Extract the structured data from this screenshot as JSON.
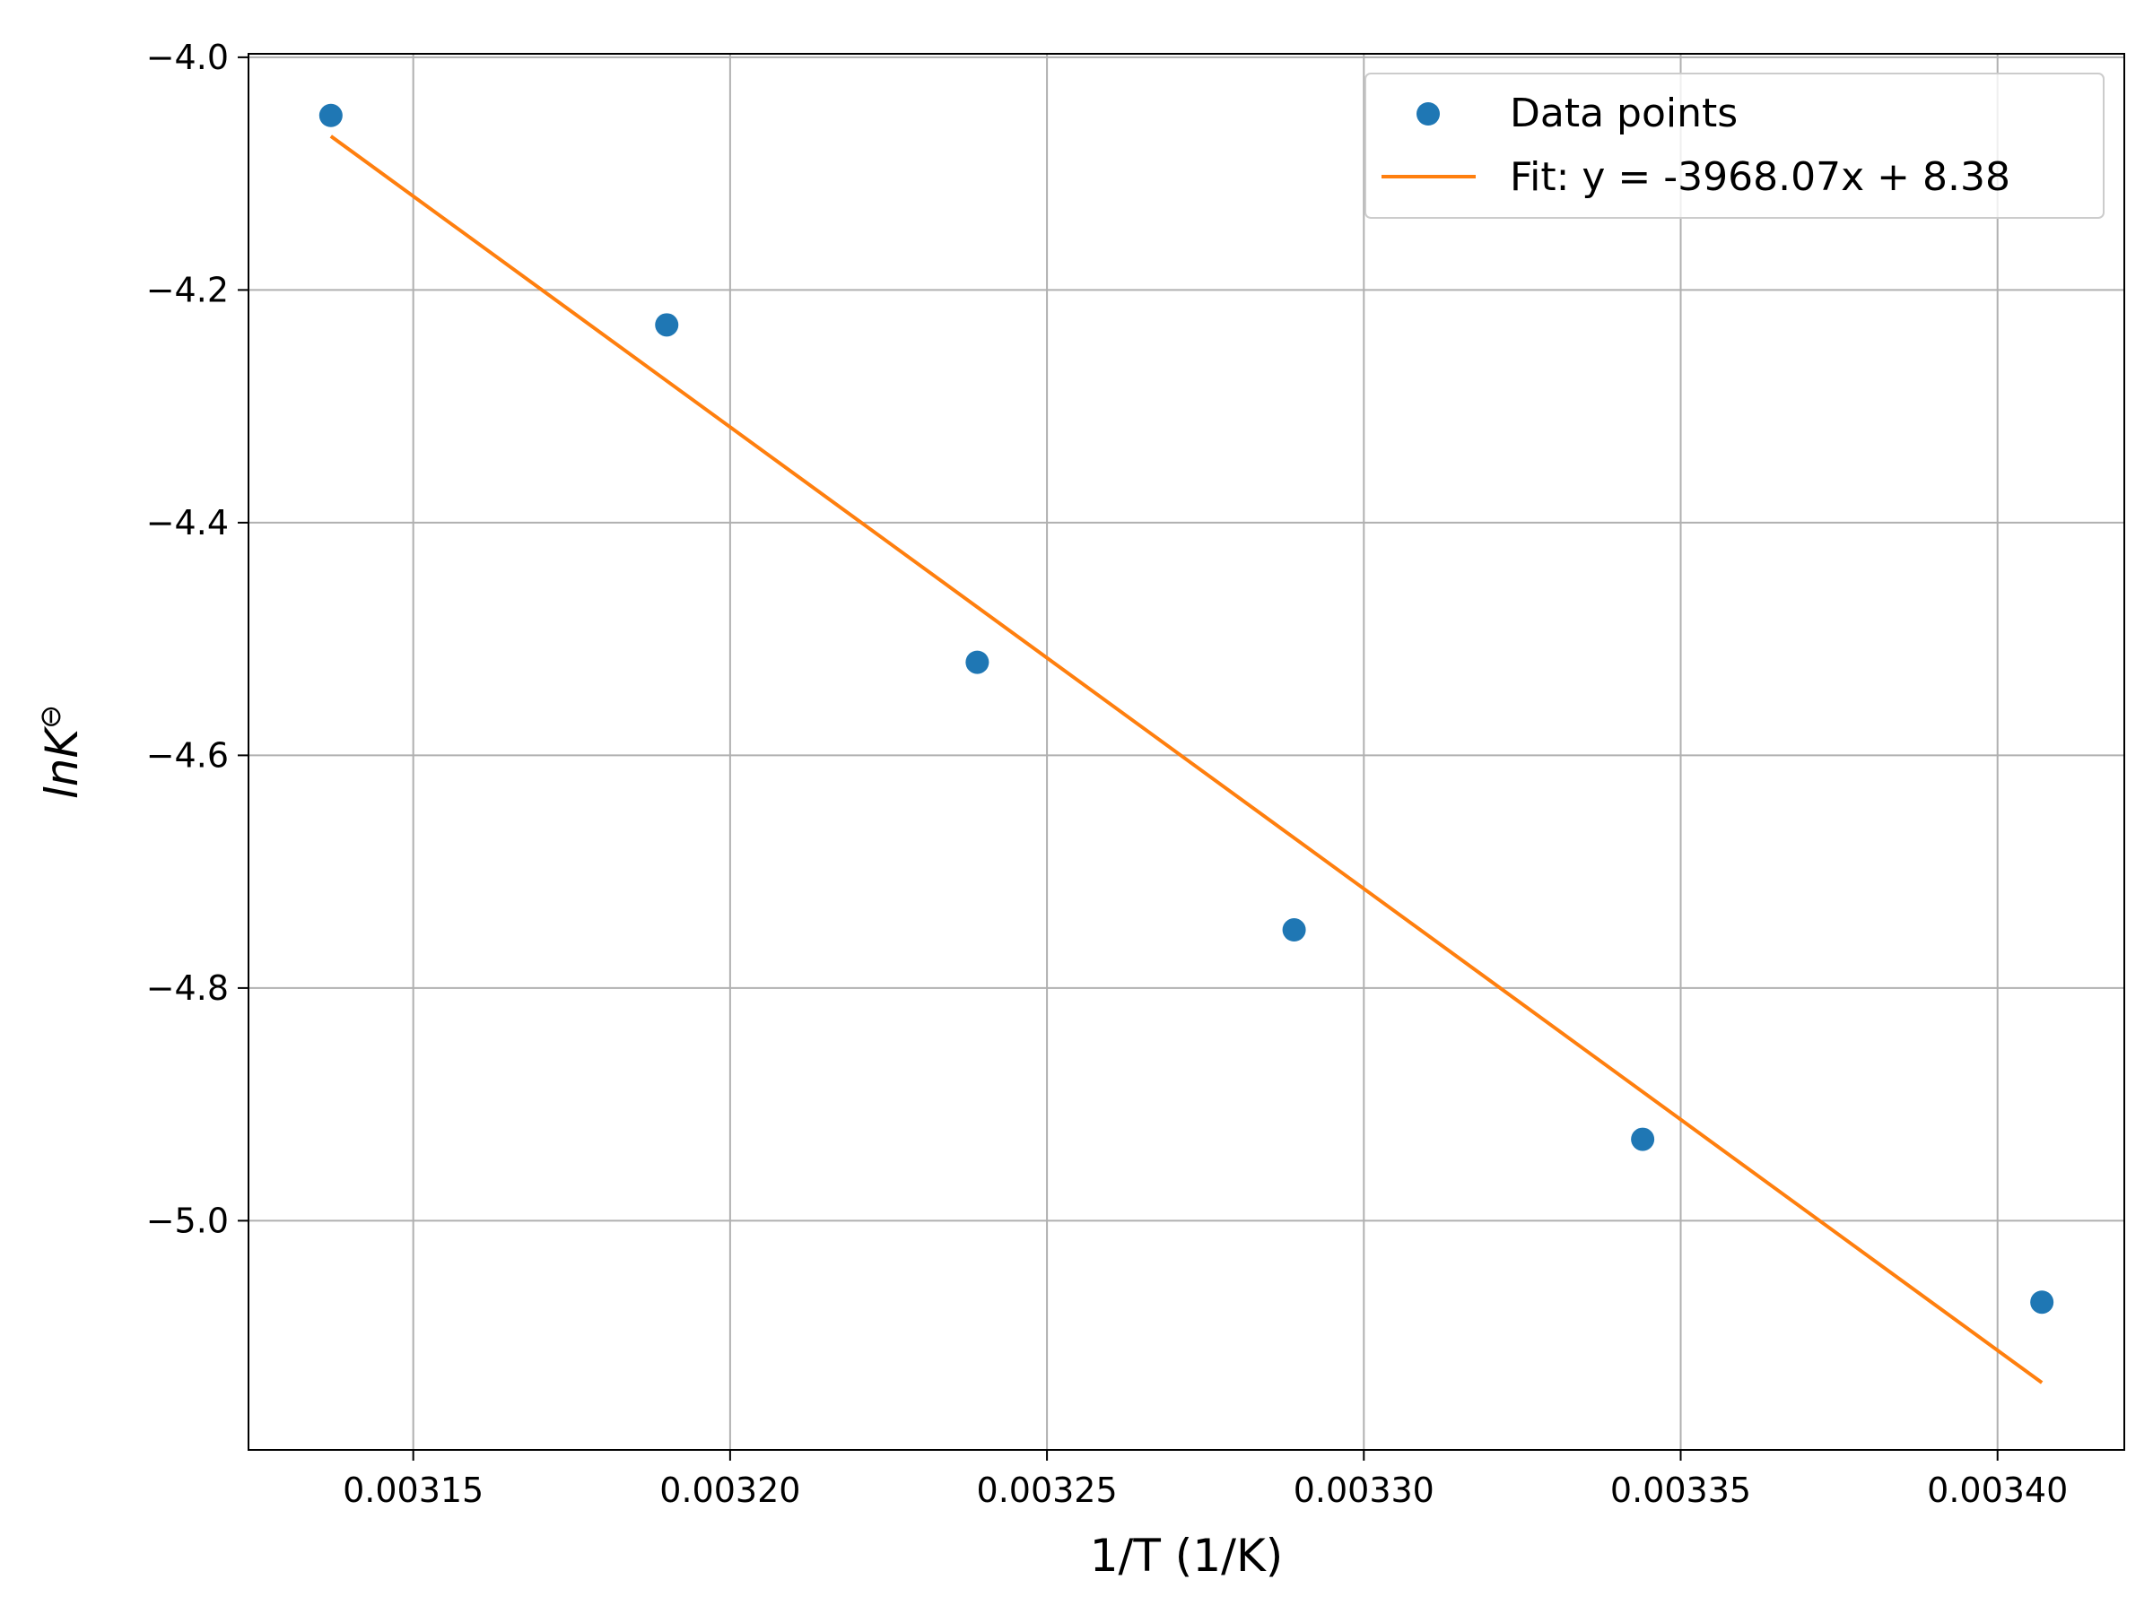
{
  "chart_data": {
    "type": "scatter",
    "xlabel": "1/T (1/K)",
    "ylabel": {
      "base": "lnK",
      "superscript": "⊖"
    },
    "xlim": [
      0.003124,
      0.00342
    ],
    "ylim": [
      -5.197,
      -3.997
    ],
    "xticks": [
      0.00315,
      0.0032,
      0.00325,
      0.0033,
      0.00335,
      0.0034
    ],
    "xtick_labels": [
      "0.00315",
      "0.00320",
      "0.00325",
      "0.00330",
      "0.00335",
      "0.00340"
    ],
    "yticks": [
      -4.0,
      -4.2,
      -4.4,
      -4.6,
      -4.8,
      -5.0
    ],
    "ytick_labels": [
      "−4.0",
      "−4.2",
      "−4.4",
      "−4.6",
      "−4.8",
      "−5.0"
    ],
    "grid": true,
    "legend_position": "top-right",
    "series": [
      {
        "name": "Data points",
        "kind": "scatter",
        "color": "#1f77b4",
        "x": [
          0.003137,
          0.00319,
          0.003239,
          0.003289,
          0.003344,
          0.003407
        ],
        "y": [
          -4.05,
          -4.23,
          -4.52,
          -4.75,
          -4.93,
          -5.07
        ]
      },
      {
        "name": "Fit: y = -3968.07x + 8.38",
        "kind": "line",
        "color": "#ff7f0e",
        "slope": -3968.07,
        "intercept": 8.38,
        "x_range": [
          0.003137,
          0.003407
        ]
      }
    ]
  }
}
